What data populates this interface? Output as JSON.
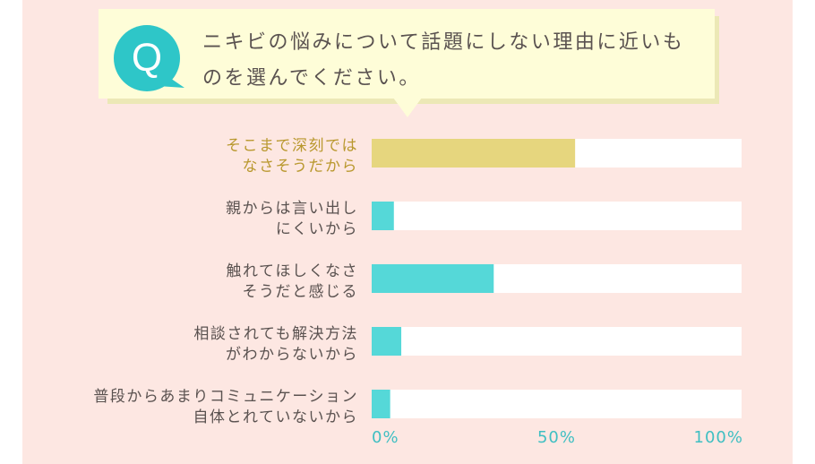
{
  "question": {
    "badge": "Q",
    "text": "ニキビの悩みについて話題にしない理由に近いものを選んでください。"
  },
  "colors": {
    "panel_background": "#fde7e2",
    "question_box": "#fefdd8",
    "badge": "#2ec6c8",
    "highlight_bar": "#e6d67e",
    "bar": "#55d8d8",
    "track": "#ffffff",
    "highlight_label": "#b9982e",
    "label": "#5a5250",
    "tick_label": "#3fbfc2"
  },
  "chart_data": {
    "type": "bar",
    "orientation": "horizontal",
    "categories": [
      [
        "そこまで深刻では",
        "なさそうだから"
      ],
      [
        "親からは言い出し",
        "にくいから"
      ],
      [
        "触れてほしくなさ",
        "そうだと感じる"
      ],
      [
        "相談されても解決方法",
        "がわからないから"
      ],
      [
        "普段からあまりコミュニケーション",
        "自体とれていないから"
      ]
    ],
    "values": [
      55,
      6,
      33,
      8,
      5
    ],
    "highlight_index": 0,
    "xlim": [
      0,
      100
    ],
    "xticks": [
      0,
      50,
      100
    ],
    "xtick_labels": [
      "0%",
      "50%",
      "100%"
    ],
    "title": "",
    "xlabel": "",
    "ylabel": "",
    "grid": false,
    "legend": "none"
  }
}
